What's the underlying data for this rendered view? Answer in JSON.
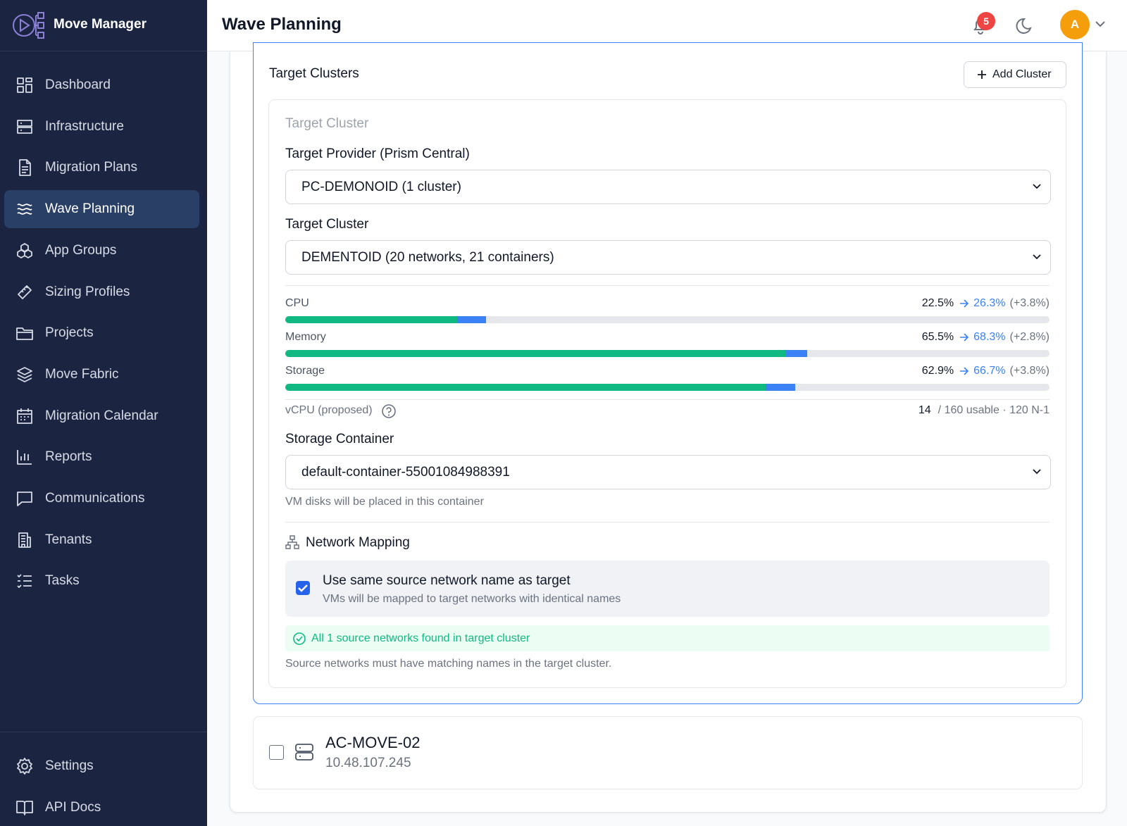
{
  "app": {
    "name": "Move Manager"
  },
  "nav": [
    "Dashboard",
    "Infrastructure",
    "Migration Plans",
    "Wave Planning",
    "App Groups",
    "Sizing Profiles",
    "Projects",
    "Move Fabric",
    "Migration Calendar",
    "Reports",
    "Communications",
    "Tenants",
    "Tasks"
  ],
  "nav_footer": [
    "Settings",
    "API Docs"
  ],
  "header": {
    "title": "Wave Planning",
    "notifications": 5,
    "avatar": "A"
  },
  "target_clusters": {
    "title": "Target Clusters",
    "add_button": "Add Cluster",
    "card": {
      "heading": "Target Cluster",
      "provider_label": "Target Provider (Prism Central)",
      "provider_value": "PC-DEMONOID (1 cluster)",
      "cluster_label": "Target Cluster",
      "cluster_value": "DEMENTOID (20 networks, 21 containers)",
      "resources": {
        "xlim": [
          0,
          100
        ],
        "items": [
          {
            "name": "CPU",
            "current": 22.5,
            "current_label": "22.5%",
            "proposed": 26.3,
            "proposed_label": "26.3%",
            "delta": "(+3.8%)"
          },
          {
            "name": "Memory",
            "current": 65.5,
            "current_label": "65.5%",
            "proposed": 68.3,
            "proposed_label": "68.3%",
            "delta": "(+2.8%)"
          },
          {
            "name": "Storage",
            "current": 62.9,
            "current_label": "62.9%",
            "proposed": 66.7,
            "proposed_label": "66.7%",
            "delta": "(+3.8%)"
          }
        ]
      },
      "vcpu": {
        "label": "vCPU (proposed)",
        "value": 14,
        "detail": "/ 160 usable · 120 N-1"
      },
      "storage_label": "Storage Container",
      "storage_value": "default-container-55001084988391",
      "storage_hint": "VM disks will be placed in this container",
      "network": {
        "title": "Network Mapping",
        "checkbox_label": "Use same source network name as target",
        "checkbox_hint": "VMs will be mapped to target networks with identical names",
        "checked": true,
        "status": "All 1 source networks found in target cluster",
        "note": "Source networks must have matching names in the target cluster."
      }
    }
  },
  "source_cluster": {
    "name": "AC-MOVE-02",
    "ip": "10.48.107.245"
  }
}
